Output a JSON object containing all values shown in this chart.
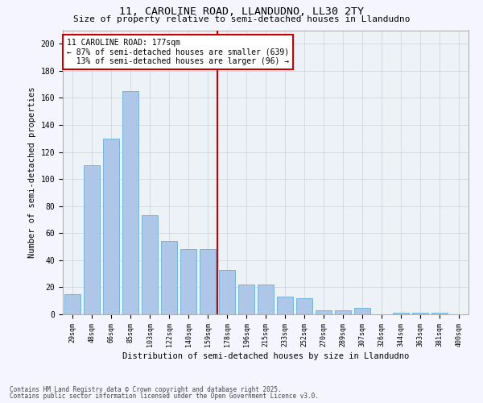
{
  "title1": "11, CAROLINE ROAD, LLANDUDNO, LL30 2TY",
  "title2": "Size of property relative to semi-detached houses in Llandudno",
  "xlabel": "Distribution of semi-detached houses by size in Llandudno",
  "ylabel": "Number of semi-detached properties",
  "categories": [
    "29sqm",
    "48sqm",
    "66sqm",
    "85sqm",
    "103sqm",
    "122sqm",
    "140sqm",
    "159sqm",
    "178sqm",
    "196sqm",
    "215sqm",
    "233sqm",
    "252sqm",
    "270sqm",
    "289sqm",
    "307sqm",
    "326sqm",
    "344sqm",
    "363sqm",
    "381sqm",
    "400sqm"
  ],
  "values": [
    15,
    110,
    130,
    165,
    73,
    54,
    48,
    48,
    33,
    22,
    22,
    13,
    12,
    3,
    3,
    5,
    0,
    1,
    1,
    1,
    0
  ],
  "bar_color": "#aec6e8",
  "bar_edgecolor": "#6aaed6",
  "vline_index": 8,
  "annotation_title": "11 CAROLINE ROAD: 177sqm",
  "annotation_smaller": "← 87% of semi-detached houses are smaller (639)",
  "annotation_larger": "13% of semi-detached houses are larger (96) →",
  "annotation_box_fc": "#ffffff",
  "annotation_box_ec": "#cc0000",
  "vline_color": "#cc0000",
  "ylim": [
    0,
    210
  ],
  "yticks": [
    0,
    20,
    40,
    60,
    80,
    100,
    120,
    140,
    160,
    180,
    200
  ],
  "grid_color": "#d0d8e0",
  "bg_color": "#edf2f7",
  "fig_facecolor": "#f5f5ff",
  "footer1": "Contains HM Land Registry data © Crown copyright and database right 2025.",
  "footer2": "Contains public sector information licensed under the Open Government Licence v3.0."
}
